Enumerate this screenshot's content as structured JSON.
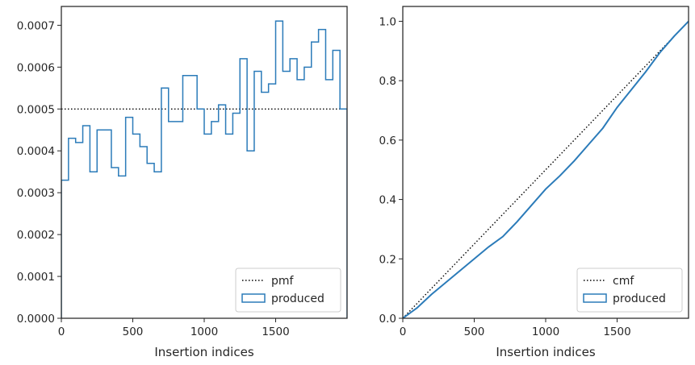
{
  "chart_data": [
    {
      "type": "histogram-step",
      "xlabel": "Insertion indices",
      "ylabel": "",
      "xlim": [
        0,
        2000
      ],
      "ylim": [
        0,
        0.000745
      ],
      "xticks": [
        0,
        500,
        1000,
        1500
      ],
      "xtick_labels": [
        "0",
        "500",
        "1000",
        "1500"
      ],
      "yticks": [
        0,
        0.0001,
        0.0002,
        0.0003,
        0.0004,
        0.0005,
        0.0006,
        0.0007
      ],
      "ytick_labels": [
        "0.0000",
        "0.0001",
        "0.0002",
        "0.0003",
        "0.0004",
        "0.0005",
        "0.0006",
        "0.0007"
      ],
      "legend_position": "lower-right",
      "colors": {
        "produced": "#2b7bb9",
        "reference": "#000000"
      },
      "series": [
        {
          "name": "pmf",
          "style": "dotted",
          "x": [
            0,
            2000
          ],
          "values": [
            0.0005,
            0.0005
          ]
        },
        {
          "name": "produced",
          "style": "step",
          "bin_edges": [
            0,
            50,
            100,
            150,
            200,
            250,
            300,
            350,
            400,
            450,
            500,
            550,
            600,
            650,
            700,
            750,
            800,
            850,
            900,
            950,
            1000,
            1050,
            1100,
            1150,
            1200,
            1250,
            1300,
            1350,
            1400,
            1450,
            1500,
            1550,
            1600,
            1650,
            1700,
            1750,
            1800,
            1850,
            1900,
            1950,
            2000
          ],
          "values": [
            0.00033,
            0.00043,
            0.00042,
            0.00046,
            0.00035,
            0.00045,
            0.00045,
            0.00036,
            0.00034,
            0.00048,
            0.00044,
            0.00041,
            0.00037,
            0.00035,
            0.00055,
            0.00047,
            0.00047,
            0.00058,
            0.00058,
            0.0005,
            0.00044,
            0.00047,
            0.00051,
            0.00044,
            0.00049,
            0.00062,
            0.0004,
            0.00059,
            0.00054,
            0.00056,
            0.00071,
            0.00059,
            0.00062,
            0.00057,
            0.0006,
            0.00066,
            0.00069,
            0.00057,
            0.00064,
            0.0005
          ]
        }
      ]
    },
    {
      "type": "line",
      "xlabel": "Insertion indices",
      "ylabel": "",
      "xlim": [
        0,
        2000
      ],
      "ylim": [
        0,
        1.05
      ],
      "xticks": [
        0,
        500,
        1000,
        1500
      ],
      "xtick_labels": [
        "0",
        "500",
        "1000",
        "1500"
      ],
      "yticks": [
        0,
        0.2,
        0.4,
        0.6,
        0.8,
        1.0
      ],
      "ytick_labels": [
        "0.0",
        "0.2",
        "0.4",
        "0.6",
        "0.8",
        "1.0"
      ],
      "legend_position": "lower-right",
      "colors": {
        "produced": "#2b7bb9",
        "reference": "#000000"
      },
      "series": [
        {
          "name": "cmf",
          "style": "dotted",
          "x": [
            0,
            2000
          ],
          "values": [
            0,
            1
          ]
        },
        {
          "name": "produced",
          "style": "line",
          "x": [
            0,
            100,
            200,
            300,
            400,
            500,
            600,
            700,
            800,
            900,
            1000,
            1100,
            1200,
            1300,
            1400,
            1500,
            1600,
            1700,
            1800,
            1900,
            2000
          ],
          "values": [
            0,
            0.035,
            0.08,
            0.12,
            0.16,
            0.2,
            0.24,
            0.275,
            0.325,
            0.38,
            0.435,
            0.48,
            0.53,
            0.585,
            0.64,
            0.71,
            0.77,
            0.83,
            0.895,
            0.95,
            1.0
          ]
        }
      ]
    }
  ]
}
